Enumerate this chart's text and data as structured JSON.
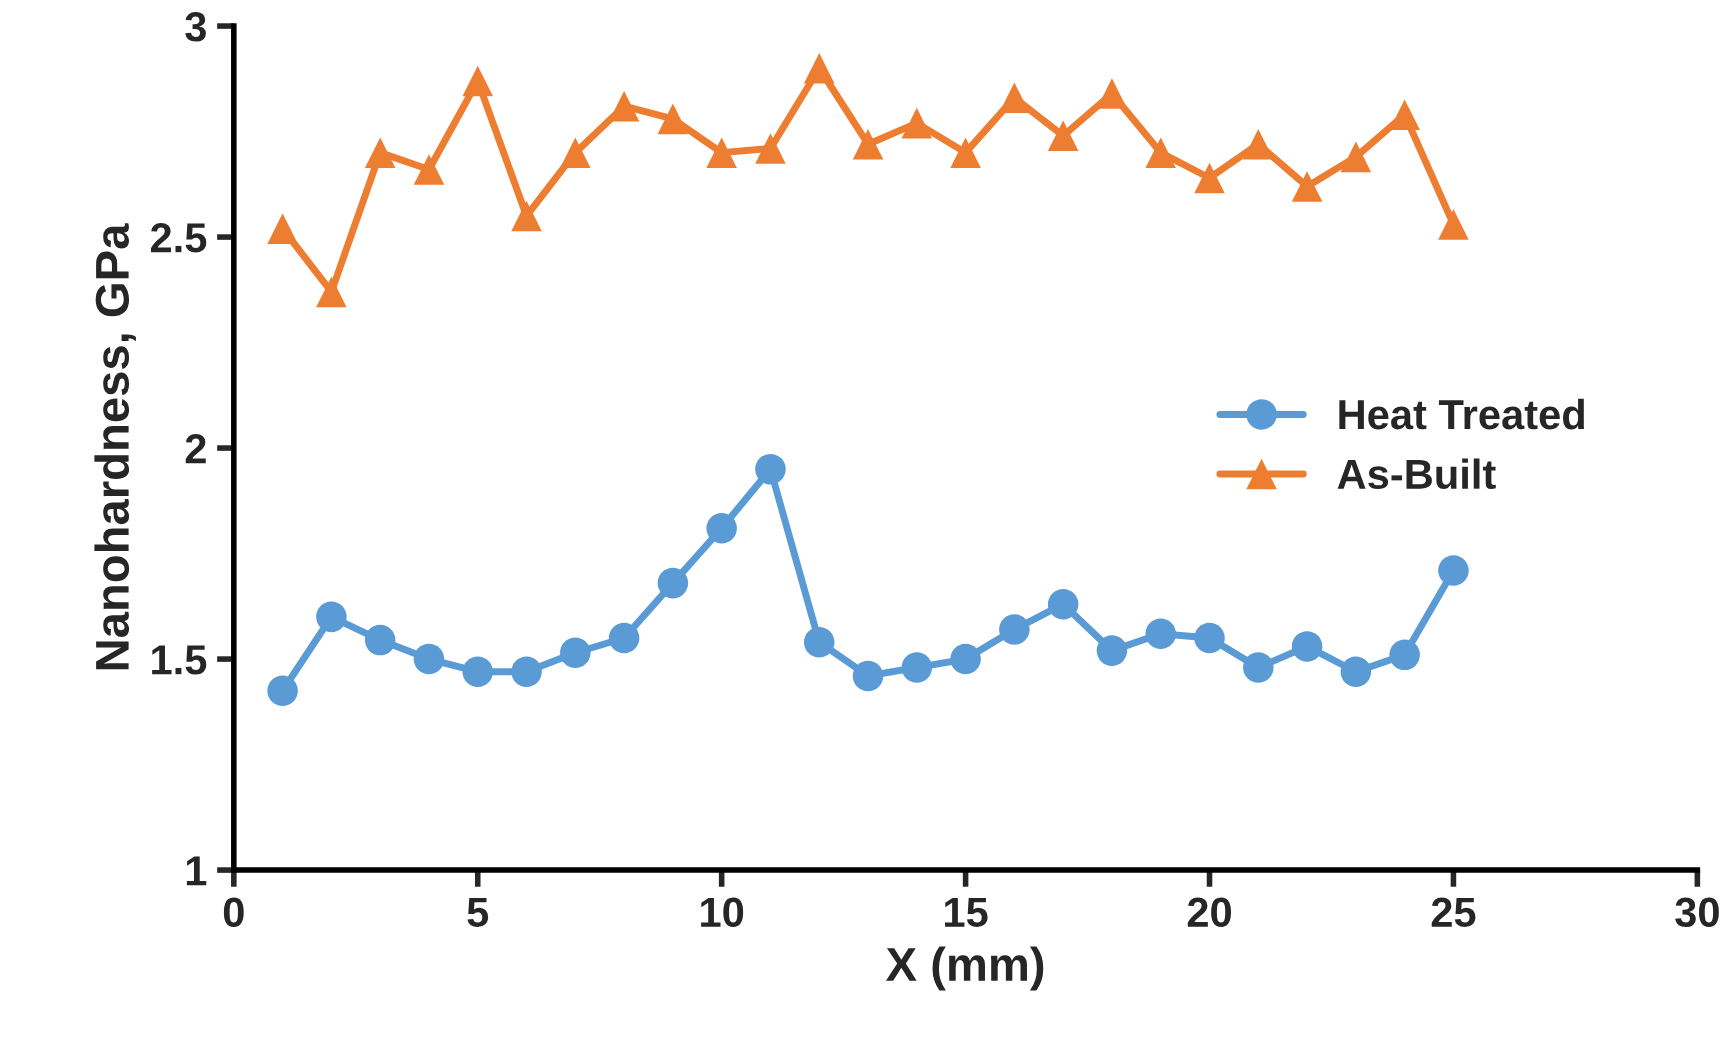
{
  "chart_data": {
    "type": "line",
    "xlabel": "X (mm)",
    "ylabel": "Nanohardness, GPa",
    "x": [
      1,
      2,
      3,
      4,
      5,
      6,
      7,
      8,
      9,
      10,
      11,
      12,
      13,
      14,
      15,
      16,
      17,
      18,
      19,
      20,
      21,
      22,
      23,
      24,
      25
    ],
    "series": [
      {
        "name": "Heat Treated",
        "color": "#5b9bd5",
        "marker": "circle",
        "values": [
          1.425,
          1.6,
          1.545,
          1.5,
          1.47,
          1.47,
          1.515,
          1.55,
          1.68,
          1.81,
          1.95,
          1.54,
          1.46,
          1.48,
          1.5,
          1.57,
          1.63,
          1.52,
          1.56,
          1.55,
          1.48,
          1.53,
          1.47,
          1.51,
          1.71
        ]
      },
      {
        "name": "As-Built",
        "color": "#ed7d31",
        "marker": "triangle",
        "values": [
          2.52,
          2.37,
          2.7,
          2.66,
          2.87,
          2.55,
          2.7,
          2.81,
          2.78,
          2.7,
          2.71,
          2.9,
          2.72,
          2.77,
          2.7,
          2.83,
          2.74,
          2.84,
          2.7,
          2.64,
          2.72,
          2.62,
          2.69,
          2.79,
          2.53
        ]
      }
    ],
    "xlim": [
      0,
      30
    ],
    "xticks": [
      0,
      5,
      10,
      15,
      20,
      25,
      30
    ],
    "ylim": [
      1,
      3
    ],
    "yticks": [
      1,
      1.5,
      2,
      2.5,
      3
    ],
    "grid": false,
    "legend": "center right",
    "line_style": "solid"
  }
}
